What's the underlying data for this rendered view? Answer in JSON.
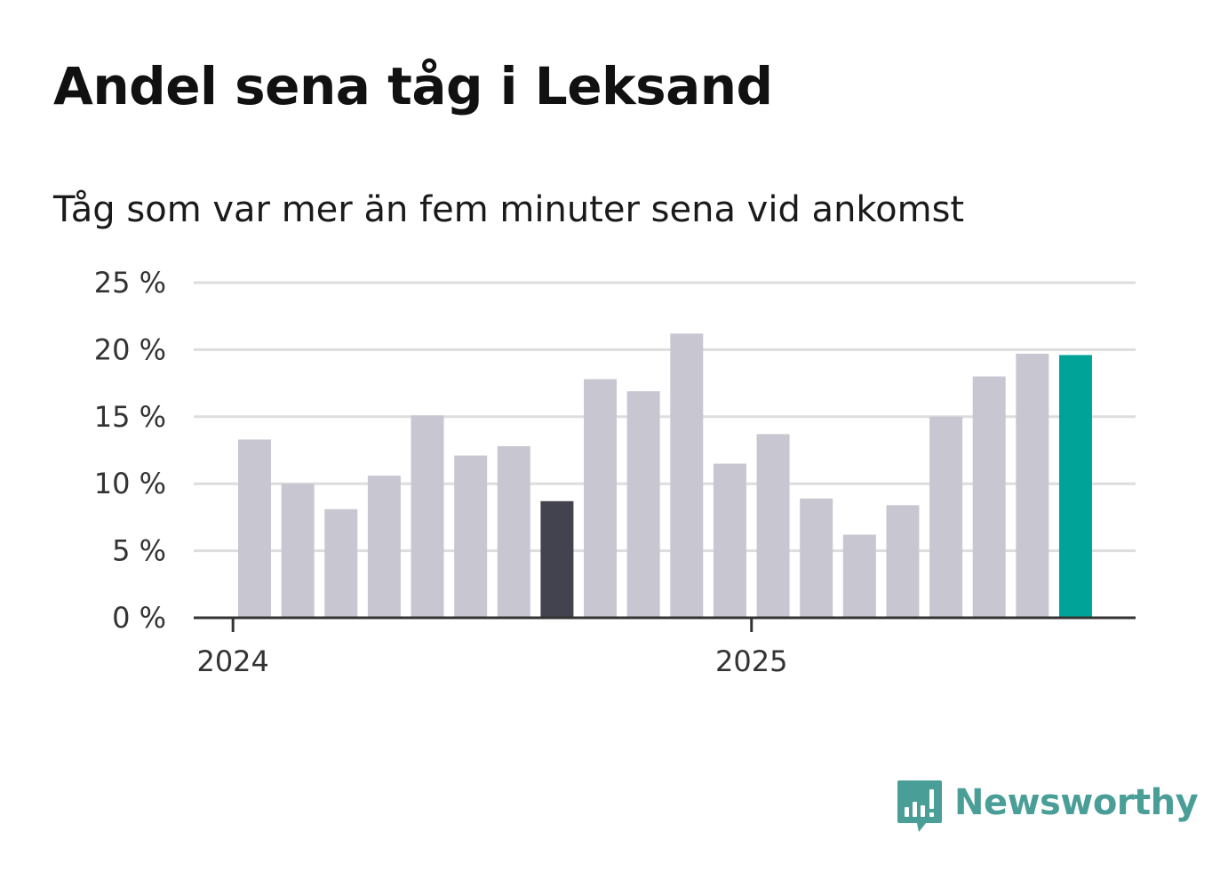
{
  "title": "Andel sena tåg i Leksand",
  "subtitle": "Tåg som var mer än fem minuter sena vid ankomst",
  "brand": {
    "name": "Newsworthy",
    "icon": "newsworthy-logo-icon",
    "color": "#4a9e98"
  },
  "colors": {
    "bar_default": "#c8c7d1",
    "bar_highlight": "#43424f",
    "bar_latest": "#00a398",
    "gridline": "#dddddd",
    "baseline": "#333333"
  },
  "chart_data": {
    "type": "bar",
    "title": "Andel sena tåg i Leksand",
    "subtitle": "Tåg som var mer än fem minuter sena vid ankomst",
    "xlabel": "",
    "ylabel": "",
    "ylim": [
      0,
      25
    ],
    "yticks": [
      0,
      5,
      10,
      15,
      20,
      25
    ],
    "ytick_labels": [
      "0 %",
      "5 %",
      "10 %",
      "15 %",
      "20 %",
      "25 %"
    ],
    "x_ticks": [
      {
        "label": "2024",
        "index": -0.5
      },
      {
        "label": "2025",
        "index": 11.5
      }
    ],
    "categories": [
      "2024-01",
      "2024-02",
      "2024-03",
      "2024-04",
      "2024-05",
      "2024-06",
      "2024-07",
      "2024-08",
      "2024-09",
      "2024-10",
      "2024-11",
      "2024-12",
      "2025-01",
      "2025-02",
      "2025-03",
      "2025-04",
      "2025-05",
      "2025-06",
      "2025-07",
      "2025-08"
    ],
    "values": [
      13.3,
      10.0,
      8.1,
      10.6,
      15.1,
      12.1,
      12.8,
      8.7,
      17.8,
      16.9,
      21.2,
      11.5,
      13.7,
      8.9,
      6.2,
      8.4,
      15.0,
      18.0,
      19.7,
      19.6
    ],
    "highlight": {
      "index": 7,
      "role": "highlight"
    },
    "latest": {
      "index": 19,
      "role": "latest"
    },
    "grid": true,
    "legend": "none"
  }
}
